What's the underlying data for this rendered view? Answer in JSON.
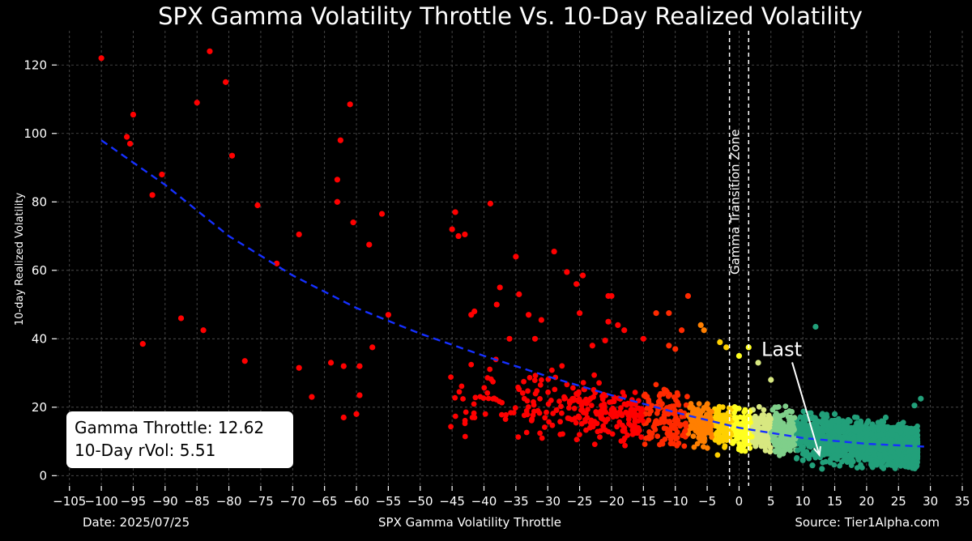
{
  "chart_data": {
    "type": "scatter",
    "title": "SPX Gamma Volatility Throttle Vs. 10-Day Realized Volatility",
    "xlabel": "SPX Gamma Volatility Throttle",
    "ylabel": "10-day Realized Volatility",
    "xlim": [
      -107,
      35
    ],
    "ylim": [
      -3,
      130
    ],
    "xticks": [
      -105,
      -100,
      -95,
      -90,
      -85,
      -80,
      -75,
      -70,
      -65,
      -60,
      -55,
      -50,
      -45,
      -40,
      -35,
      -30,
      -25,
      -20,
      -15,
      -10,
      -5,
      0,
      5,
      10,
      15,
      20,
      25,
      30,
      35
    ],
    "yticks": [
      0,
      20,
      40,
      60,
      80,
      100,
      120
    ],
    "tick_labels_x": [
      "−105",
      "−100",
      "−95",
      "−90",
      "−85",
      "−80",
      "−75",
      "−70",
      "−65",
      "−60",
      "−55",
      "−50",
      "−45",
      "−40",
      "−35",
      "−30",
      "−25",
      "−20",
      "−15",
      "−10",
      "−5",
      "0",
      "5",
      "10",
      "15",
      "20",
      "25",
      "30",
      "35"
    ],
    "tick_labels_y": [
      "0",
      "20",
      "40",
      "60",
      "80",
      "100",
      "120"
    ],
    "grid": true,
    "color_scale": [
      "#ff0000",
      "#ff2a00",
      "#ff7f00",
      "#ffd000",
      "#ffff20",
      "#d8e880",
      "#7fcf8a",
      "#22a07a",
      "#0e8a6a"
    ],
    "series": [
      {
        "points": [
          [
            -100,
            122
          ],
          [
            -96,
            99
          ],
          [
            -95.5,
            97
          ],
          [
            -95,
            105.5
          ],
          [
            -93.5,
            38.5
          ],
          [
            -92,
            82
          ],
          [
            -90.5,
            88
          ],
          [
            -87.5,
            46
          ],
          [
            -85,
            109
          ],
          [
            -84,
            42.5
          ],
          [
            -83,
            124
          ],
          [
            -80.5,
            115
          ],
          [
            -79.5,
            93.5
          ],
          [
            -77.5,
            33.5
          ],
          [
            -75.5,
            79
          ],
          [
            -72.5,
            62
          ],
          [
            -69,
            70.5
          ],
          [
            -69,
            31.5
          ],
          [
            -67,
            23
          ],
          [
            -64,
            33
          ],
          [
            -63,
            86.5
          ],
          [
            -63,
            80
          ],
          [
            -62.5,
            98
          ],
          [
            -62,
            17
          ],
          [
            -62,
            32
          ],
          [
            -61,
            108.5
          ],
          [
            -60.5,
            74
          ],
          [
            -60,
            18
          ],
          [
            -59.5,
            23.5
          ],
          [
            -59.5,
            32
          ],
          [
            -58,
            67.5
          ],
          [
            -57.5,
            37.5
          ],
          [
            -56,
            76.5
          ],
          [
            -55,
            47
          ],
          [
            -45,
            72
          ],
          [
            -44.5,
            77
          ],
          [
            -44,
            70
          ],
          [
            -43,
            70.5
          ],
          [
            -42,
            47
          ],
          [
            -41.5,
            48
          ],
          [
            -39,
            79.5
          ],
          [
            -38,
            50
          ],
          [
            -37.5,
            55
          ],
          [
            -36,
            40
          ],
          [
            -35,
            64
          ],
          [
            -34.5,
            53
          ],
          [
            -33,
            47
          ],
          [
            -32,
            40
          ],
          [
            -31,
            45.5
          ],
          [
            -29,
            65.5
          ],
          [
            -27,
            59.5
          ],
          [
            -25.5,
            56
          ],
          [
            -25,
            47.5
          ],
          [
            -24.5,
            58.5
          ],
          [
            -23,
            38
          ],
          [
            -21,
            39.5
          ],
          [
            -20.5,
            52.5
          ],
          [
            -20,
            52.5
          ],
          [
            -20.5,
            45
          ],
          [
            -19,
            44
          ],
          [
            -18,
            42.5
          ],
          [
            -15,
            40
          ],
          [
            -13,
            47.5
          ],
          [
            -11,
            38
          ],
          [
            -11,
            47.5
          ],
          [
            -10,
            37
          ],
          [
            -9,
            42.5
          ],
          [
            -8,
            52.5
          ],
          [
            -6,
            44
          ],
          [
            -5.5,
            42.5
          ],
          [
            -3,
            39
          ],
          [
            -2,
            37.5
          ],
          [
            0,
            35
          ],
          [
            1.5,
            37.5
          ],
          [
            3,
            33
          ],
          [
            5,
            28
          ],
          [
            12,
            43.5
          ],
          [
            28.5,
            22.5
          ],
          [
            27.5,
            20.5
          ],
          [
            26,
            8.5
          ],
          [
            25,
            7.5
          ],
          [
            24,
            12
          ],
          [
            23,
            17
          ],
          [
            22,
            14
          ],
          [
            20,
            10.5
          ],
          [
            18,
            11
          ],
          [
            16,
            10
          ],
          [
            15.5,
            13
          ],
          [
            15,
            18
          ],
          [
            14,
            7
          ],
          [
            13,
            2
          ],
          [
            11.5,
            3
          ],
          [
            10,
            4.5
          ]
        ]
      }
    ],
    "trend": {
      "style": "dashed",
      "color": "#1530ff",
      "points": [
        [
          -100,
          98
        ],
        [
          -90,
          85
        ],
        [
          -80,
          70
        ],
        [
          -70,
          58.5
        ],
        [
          -60,
          49
        ],
        [
          -50,
          41.5
        ],
        [
          -40,
          35
        ],
        [
          -30,
          29
        ],
        [
          -20,
          23.5
        ],
        [
          -10,
          18.5
        ],
        [
          0,
          14
        ],
        [
          10,
          11
        ],
        [
          20,
          9.3
        ],
        [
          29,
          8.5
        ]
      ]
    },
    "zone_lines": [
      -1.5,
      1.5
    ],
    "zone_label": "Gamma Transition Zone",
    "last_annotation": {
      "text": "Last",
      "text_at": [
        3.5,
        35
      ],
      "arrow_to": [
        12.6,
        6
      ]
    }
  },
  "info": {
    "gamma_throttle": "Gamma Throttle: 12.62",
    "rvol": "10-Day rVol: 5.51"
  },
  "footer": {
    "date": "Date: 2025/07/25",
    "source": "Source: Tier1Alpha.com"
  }
}
